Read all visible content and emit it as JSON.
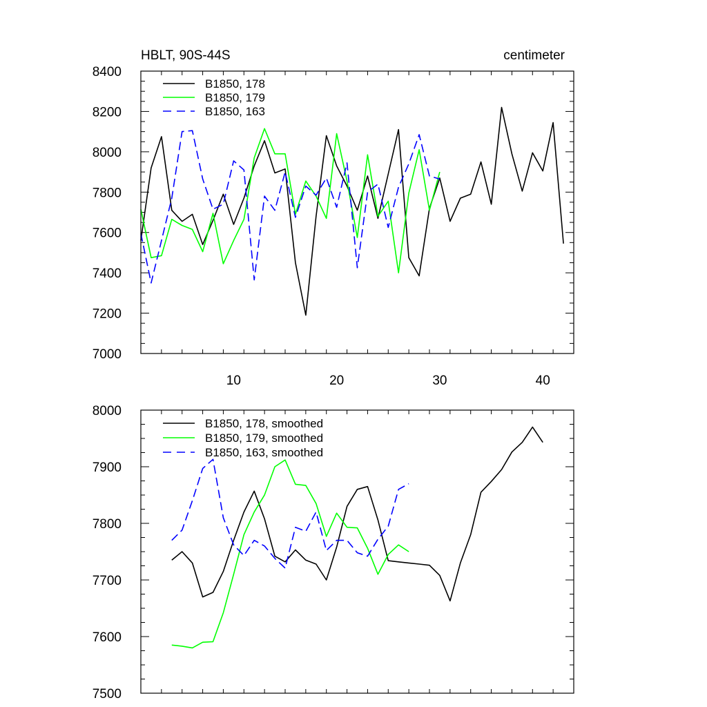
{
  "chart_data": [
    {
      "type": "line",
      "title": "HBLT, 90S-44S",
      "units_label": "centimeter",
      "xlim": [
        1,
        43
      ],
      "ylim": [
        7000,
        8400
      ],
      "x_ticks": [
        10,
        20,
        30,
        40
      ],
      "y_ticks": [
        7000,
        7200,
        7400,
        7600,
        7800,
        8000,
        8200,
        8400
      ],
      "x_tick_labels": [
        "10",
        "20",
        "30",
        "40"
      ],
      "y_tick_labels": [
        "7000",
        "7200",
        "7400",
        "7600",
        "7800",
        "8000",
        "8200",
        "8400"
      ],
      "series": [
        {
          "name": "B1850, 178",
          "color": "#000000",
          "dash": "solid",
          "x_start": 1,
          "values": [
            7560,
            7920,
            8075,
            7710,
            7655,
            7690,
            7540,
            7660,
            7790,
            7640,
            7770,
            7930,
            8055,
            7895,
            7915,
            7450,
            7190,
            7680,
            8080,
            7930,
            7830,
            7710,
            7880,
            7670,
            7890,
            8110,
            7475,
            7385,
            7720,
            7870,
            7655,
            7770,
            7790,
            7950,
            7740,
            8220,
            7990,
            7805,
            7995,
            7905,
            8145,
            7545
          ]
        },
        {
          "name": "B1850, 179",
          "color": "#00ff00",
          "dash": "solid",
          "x_start": 1,
          "values": [
            7715,
            7475,
            7485,
            7665,
            7635,
            7615,
            7505,
            7695,
            7445,
            7560,
            7665,
            7970,
            8115,
            7990,
            7990,
            7690,
            7855,
            7780,
            7670,
            8090,
            7855,
            7575,
            7985,
            7680,
            7755,
            7400,
            7795,
            8010,
            7710,
            7900
          ]
        },
        {
          "name": "B1850, 163",
          "color": "#0000ff",
          "dash": "dashed",
          "x_start": 1,
          "values": [
            7595,
            7350,
            7560,
            7770,
            8100,
            8105,
            7865,
            7715,
            7740,
            7955,
            7910,
            7365,
            7780,
            7710,
            7900,
            7675,
            7830,
            7785,
            7870,
            7725,
            7945,
            7425,
            7800,
            7840,
            7625,
            7825,
            7940,
            8085,
            7880,
            7865
          ]
        }
      ]
    },
    {
      "type": "line",
      "title": "",
      "xlim": [
        1,
        43
      ],
      "ylim": [
        7500,
        8000
      ],
      "x_ticks": [
        10,
        20,
        30,
        40
      ],
      "y_ticks": [
        7500,
        7600,
        7700,
        7800,
        7900,
        8000
      ],
      "y_tick_labels": [
        "7500",
        "7600",
        "7700",
        "7800",
        "7900",
        "8000"
      ],
      "series": [
        {
          "name": "B1850, 178, smoothed",
          "color": "#000000",
          "dash": "solid",
          "x_start": 4,
          "values": [
            7735,
            7750,
            7730,
            7670,
            7678,
            7715,
            7770,
            7820,
            7857,
            7808,
            7742,
            7732,
            7753,
            7735,
            7728,
            7700,
            7758,
            7830,
            7860,
            7865,
            7806,
            7734,
            7732,
            7730,
            7728,
            7726,
            7708,
            7663,
            7730,
            7780,
            7855,
            7874,
            7895,
            7926,
            7943,
            7970,
            7943
          ]
        },
        {
          "name": "B1850, 179, smoothed",
          "color": "#00ff00",
          "dash": "solid",
          "x_start": 4,
          "values": [
            7585,
            7583,
            7580,
            7590,
            7591,
            7642,
            7710,
            7780,
            7820,
            7850,
            7900,
            7912,
            7869,
            7867,
            7835,
            7777,
            7818,
            7793,
            7792,
            7756,
            7710,
            7745,
            7762,
            7750
          ]
        },
        {
          "name": "B1850, 163, smoothed",
          "color": "#0000ff",
          "dash": "dashed",
          "x_start": 4,
          "values": [
            7770,
            7788,
            7840,
            7897,
            7913,
            7810,
            7762,
            7743,
            7770,
            7760,
            7738,
            7721,
            7793,
            7786,
            7820,
            7752,
            7770,
            7770,
            7748,
            7742,
            7772,
            7795,
            7860,
            7870
          ]
        }
      ]
    }
  ]
}
